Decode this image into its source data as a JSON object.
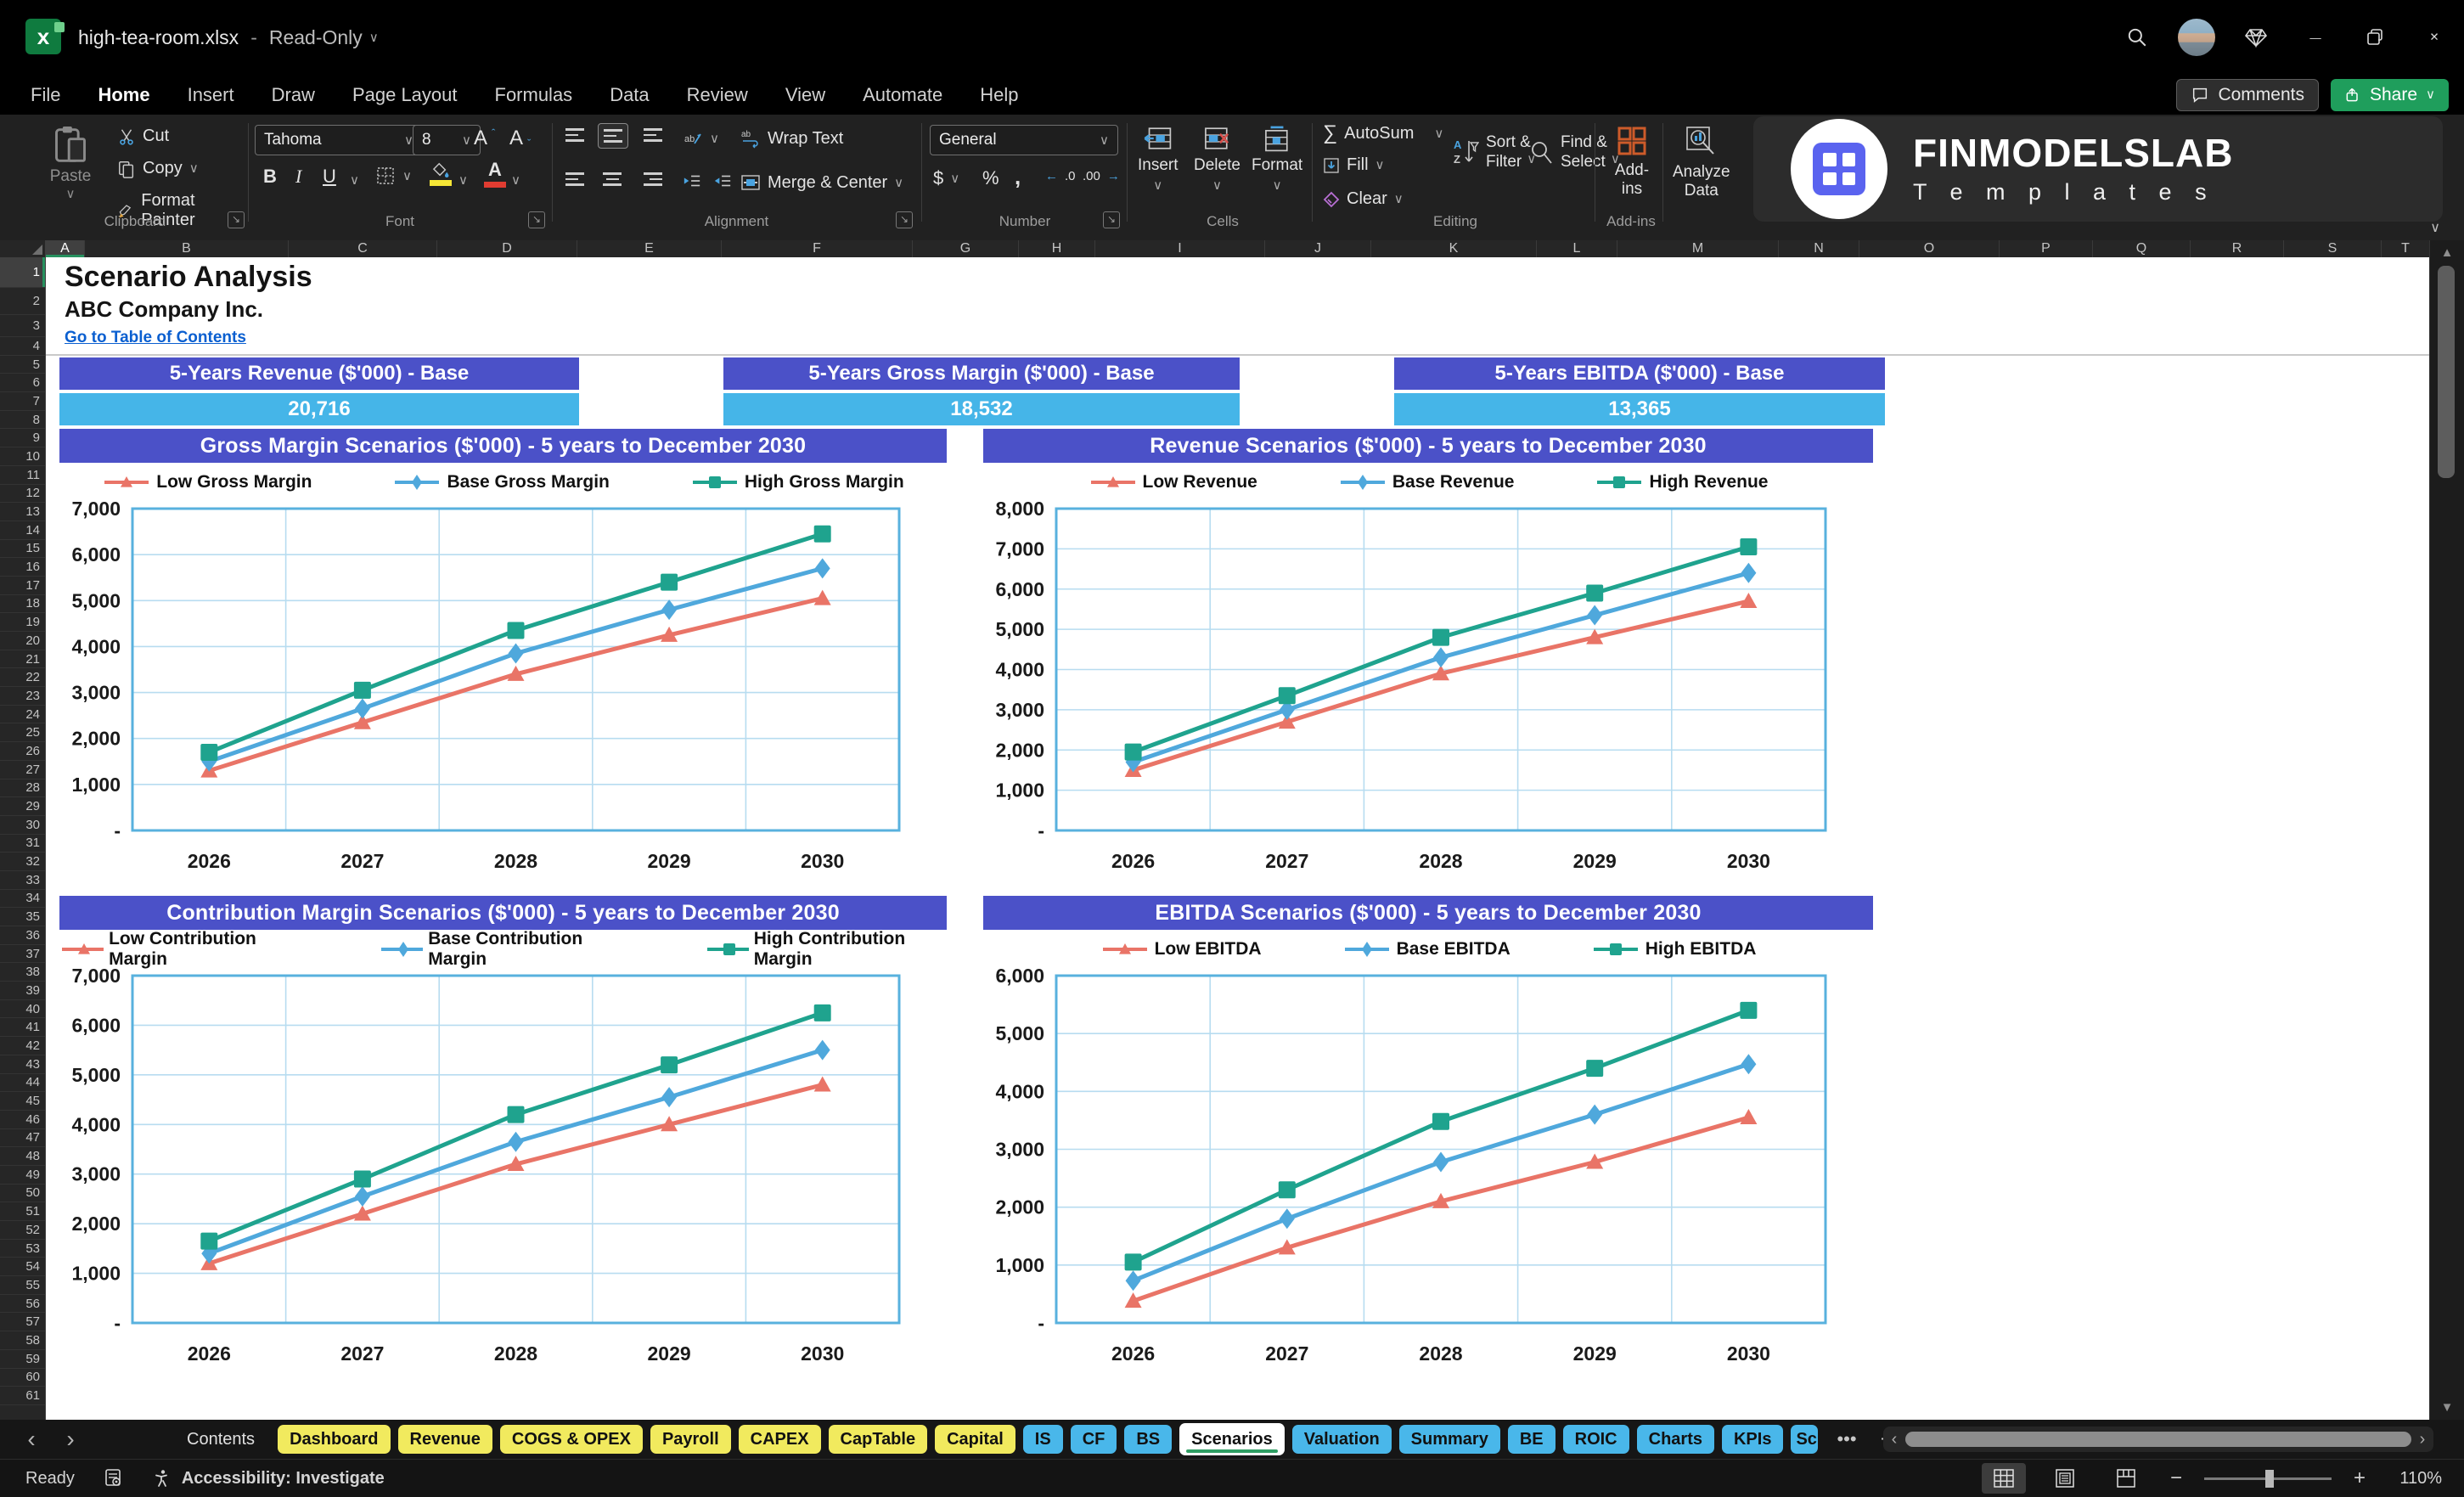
{
  "window": {
    "title": "high-tea-room.xlsx",
    "separator": "-",
    "mode": "Read-Only"
  },
  "menubar": {
    "tabs": [
      "File",
      "Home",
      "Insert",
      "Draw",
      "Page Layout",
      "Formulas",
      "Data",
      "Review",
      "View",
      "Automate",
      "Help"
    ],
    "active_tab": "Home",
    "comments_label": "Comments",
    "share_label": "Share"
  },
  "ribbon": {
    "clipboard": {
      "label": "Clipboard",
      "paste": "Paste",
      "cut": "Cut",
      "copy": "Copy",
      "format_painter": "Format Painter"
    },
    "font": {
      "label": "Font",
      "family": "Tahoma",
      "size": "8"
    },
    "alignment": {
      "label": "Alignment",
      "wrap_text": "Wrap Text",
      "merge_center": "Merge & Center"
    },
    "number": {
      "label": "Number",
      "format": "General"
    },
    "cells": {
      "label": "Cells",
      "insert": "Insert",
      "delete": "Delete",
      "format": "Format"
    },
    "editing": {
      "label": "Editing",
      "autosum": "AutoSum",
      "fill": "Fill",
      "clear": "Clear",
      "sort_filter_1": "Sort &",
      "sort_filter_2": "Filter",
      "find_select_1": "Find &",
      "find_select_2": "Select"
    },
    "addins": {
      "label": "Add-ins",
      "button": "Add-ins"
    },
    "analyze": {
      "line1": "Analyze",
      "line2": "Data"
    },
    "brand": {
      "name": "FINMODELSLAB",
      "sub": "T e m p l a t e s"
    }
  },
  "grid": {
    "columns": [
      "A",
      "B",
      "C",
      "D",
      "E",
      "F",
      "G",
      "H",
      "I",
      "J",
      "K",
      "L",
      "M",
      "N",
      "O",
      "P",
      "Q",
      "R",
      "S",
      "T"
    ],
    "row_count": 61,
    "active_col": "A",
    "active_row": 1
  },
  "sheet": {
    "title": "Scenario Analysis",
    "company": "ABC Company Inc.",
    "link": "Go to Table of Contents",
    "kpis": [
      {
        "label": "5-Years Revenue ($'000) - Base",
        "value": "20,716"
      },
      {
        "label": "5-Years Gross Margin ($'000) - Base",
        "value": "18,532"
      },
      {
        "label": "5-Years EBITDA ($'000) - Base",
        "value": "13,365"
      }
    ]
  },
  "chart_data": [
    {
      "type": "line",
      "title": "Gross Margin Scenarios ($'000) - 5 years to December 2030",
      "categories": [
        "2026",
        "2027",
        "2028",
        "2029",
        "2030"
      ],
      "ylim": [
        0,
        7000
      ],
      "ytick_step": 1000,
      "grid": true,
      "legend_position": "top",
      "series": [
        {
          "name": "Low Gross Margin",
          "color": "#e97467",
          "marker": "triangle",
          "values": [
            1300,
            2350,
            3400,
            4250,
            5050
          ]
        },
        {
          "name": "Base Gross Margin",
          "color": "#4fa8dc",
          "marker": "diamond",
          "values": [
            1500,
            2650,
            3850,
            4800,
            5700
          ]
        },
        {
          "name": "High Gross Margin",
          "color": "#1fa38e",
          "marker": "square",
          "values": [
            1700,
            3050,
            4350,
            5400,
            6450
          ]
        }
      ]
    },
    {
      "type": "line",
      "title": "Revenue Scenarios ($'000) - 5 years to December 2030",
      "categories": [
        "2026",
        "2027",
        "2028",
        "2029",
        "2030"
      ],
      "ylim": [
        0,
        8000
      ],
      "ytick_step": 1000,
      "grid": true,
      "legend_position": "top",
      "series": [
        {
          "name": "Low Revenue",
          "color": "#e97467",
          "marker": "triangle",
          "values": [
            1500,
            2700,
            3900,
            4800,
            5700
          ]
        },
        {
          "name": "Base Revenue",
          "color": "#4fa8dc",
          "marker": "diamond",
          "values": [
            1700,
            3000,
            4300,
            5350,
            6400
          ]
        },
        {
          "name": "High Revenue",
          "color": "#1fa38e",
          "marker": "square",
          "values": [
            1950,
            3350,
            4800,
            5900,
            7050
          ]
        }
      ]
    },
    {
      "type": "line",
      "title": "Contribution Margin Scenarios ($'000) - 5 years to December 2030",
      "categories": [
        "2026",
        "2027",
        "2028",
        "2029",
        "2030"
      ],
      "ylim": [
        0,
        7000
      ],
      "ytick_step": 1000,
      "grid": true,
      "legend_position": "top",
      "series": [
        {
          "name": "Low Contribution Margin",
          "color": "#e97467",
          "marker": "triangle",
          "values": [
            1200,
            2200,
            3200,
            4000,
            4800
          ]
        },
        {
          "name": "Base Contribution Margin",
          "color": "#4fa8dc",
          "marker": "diamond",
          "values": [
            1400,
            2550,
            3650,
            4550,
            5500
          ]
        },
        {
          "name": "High Contribution Margin",
          "color": "#1fa38e",
          "marker": "square",
          "values": [
            1650,
            2900,
            4200,
            5200,
            6250
          ]
        }
      ]
    },
    {
      "type": "line",
      "title": "EBITDA Scenarios ($'000) - 5 years to December 2030",
      "categories": [
        "2026",
        "2027",
        "2028",
        "2029",
        "2030"
      ],
      "ylim": [
        0,
        6000
      ],
      "ytick_step": 1000,
      "grid": true,
      "legend_position": "top",
      "series": [
        {
          "name": "Low EBITDA",
          "color": "#e97467",
          "marker": "triangle",
          "values": [
            380,
            1300,
            2100,
            2780,
            3550
          ]
        },
        {
          "name": "Base EBITDA",
          "color": "#4fa8dc",
          "marker": "diamond",
          "values": [
            730,
            1800,
            2780,
            3600,
            4470
          ]
        },
        {
          "name": "High EBITDA",
          "color": "#1fa38e",
          "marker": "square",
          "values": [
            1050,
            2300,
            3480,
            4400,
            5400
          ]
        }
      ]
    }
  ],
  "tabs": {
    "sheets": [
      {
        "label": "Contents",
        "style": "plain"
      },
      {
        "label": "Dashboard",
        "style": "yellow"
      },
      {
        "label": "Revenue",
        "style": "yellow"
      },
      {
        "label": "COGS & OPEX",
        "style": "yellow"
      },
      {
        "label": "Payroll",
        "style": "yellow"
      },
      {
        "label": "CAPEX",
        "style": "yellow"
      },
      {
        "label": "CapTable",
        "style": "yellow"
      },
      {
        "label": "Capital",
        "style": "yellow"
      },
      {
        "label": "IS",
        "style": "blue"
      },
      {
        "label": "CF",
        "style": "blue"
      },
      {
        "label": "BS",
        "style": "blue"
      },
      {
        "label": "Scenarios",
        "style": "active"
      },
      {
        "label": "Valuation",
        "style": "blue"
      },
      {
        "label": "Summary",
        "style": "blue"
      },
      {
        "label": "BE",
        "style": "blue"
      },
      {
        "label": "ROIC",
        "style": "blue"
      },
      {
        "label": "Charts",
        "style": "blue"
      },
      {
        "label": "KPIs",
        "style": "blue"
      },
      {
        "label": "Sc",
        "style": "blue-clipped"
      }
    ]
  },
  "statusbar": {
    "ready": "Ready",
    "accessibility": "Accessibility: Investigate",
    "zoom": "110%"
  },
  "icons": {
    "chevron_down": "∨",
    "prev_sheet": "‹",
    "next_sheet": "›",
    "more_tabs": "•••",
    "kebab": "⋮",
    "minimize": "—",
    "close": "✕",
    "autosum": "∑",
    "add_sheet": "+",
    "zoom_out": "−",
    "zoom_in": "+",
    "scroll_up": "▲",
    "scroll_down": "▼",
    "launcher": "↘"
  },
  "colors": {
    "header_purple": "#4b51c8",
    "value_blue": "#45b5e8",
    "series_low": "#e97467",
    "series_base": "#4fa8dc",
    "series_high": "#1fa38e",
    "plot_border": "#58b1de",
    "plot_grid": "#b7dcf0",
    "tab_yellow": "#f1ea5e",
    "tab_blue": "#49b7ea",
    "share_green": "#1f9e5c",
    "link_blue": "#0a5fd0"
  }
}
